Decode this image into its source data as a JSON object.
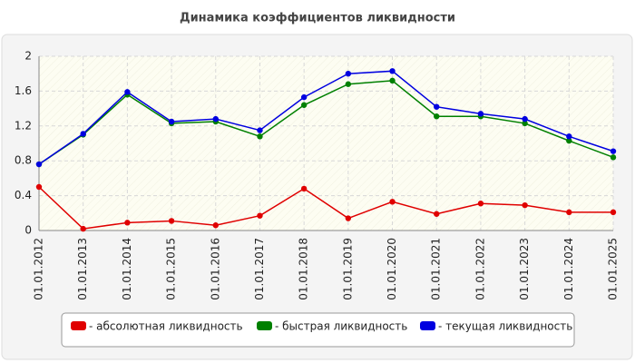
{
  "chart_data": {
    "type": "line",
    "title": "Динамика коэффициентов ликвидности",
    "categories": [
      "01.01.2012",
      "01.01.2013",
      "01.01.2014",
      "01.01.2015",
      "01.01.2016",
      "01.01.2017",
      "01.01.2018",
      "01.01.2019",
      "01.01.2020",
      "01.01.2021",
      "01.01.2022",
      "01.01.2023",
      "01.01.2024",
      "01.01.2025"
    ],
    "series": [
      {
        "name": "- абсолютная ликвидность",
        "color": "#e00000",
        "values": [
          0.5,
          0.02,
          0.09,
          0.11,
          0.06,
          0.17,
          0.48,
          0.14,
          0.33,
          0.19,
          0.31,
          0.29,
          0.21,
          0.21
        ]
      },
      {
        "name": "- быстрая ликвидность",
        "color": "#008000",
        "values": [
          0.76,
          1.1,
          1.56,
          1.23,
          1.25,
          1.08,
          1.44,
          1.68,
          1.72,
          1.31,
          1.31,
          1.23,
          1.03,
          0.84
        ]
      },
      {
        "name": "- текущая ликвидность",
        "color": "#0000e0",
        "values": [
          0.76,
          1.11,
          1.59,
          1.25,
          1.28,
          1.15,
          1.53,
          1.8,
          1.83,
          1.42,
          1.34,
          1.28,
          1.08,
          0.91
        ]
      }
    ],
    "ylim": [
      0,
      2
    ],
    "yticks": [
      0,
      0.4,
      0.8,
      1.2,
      1.6,
      2
    ],
    "grid": true
  }
}
